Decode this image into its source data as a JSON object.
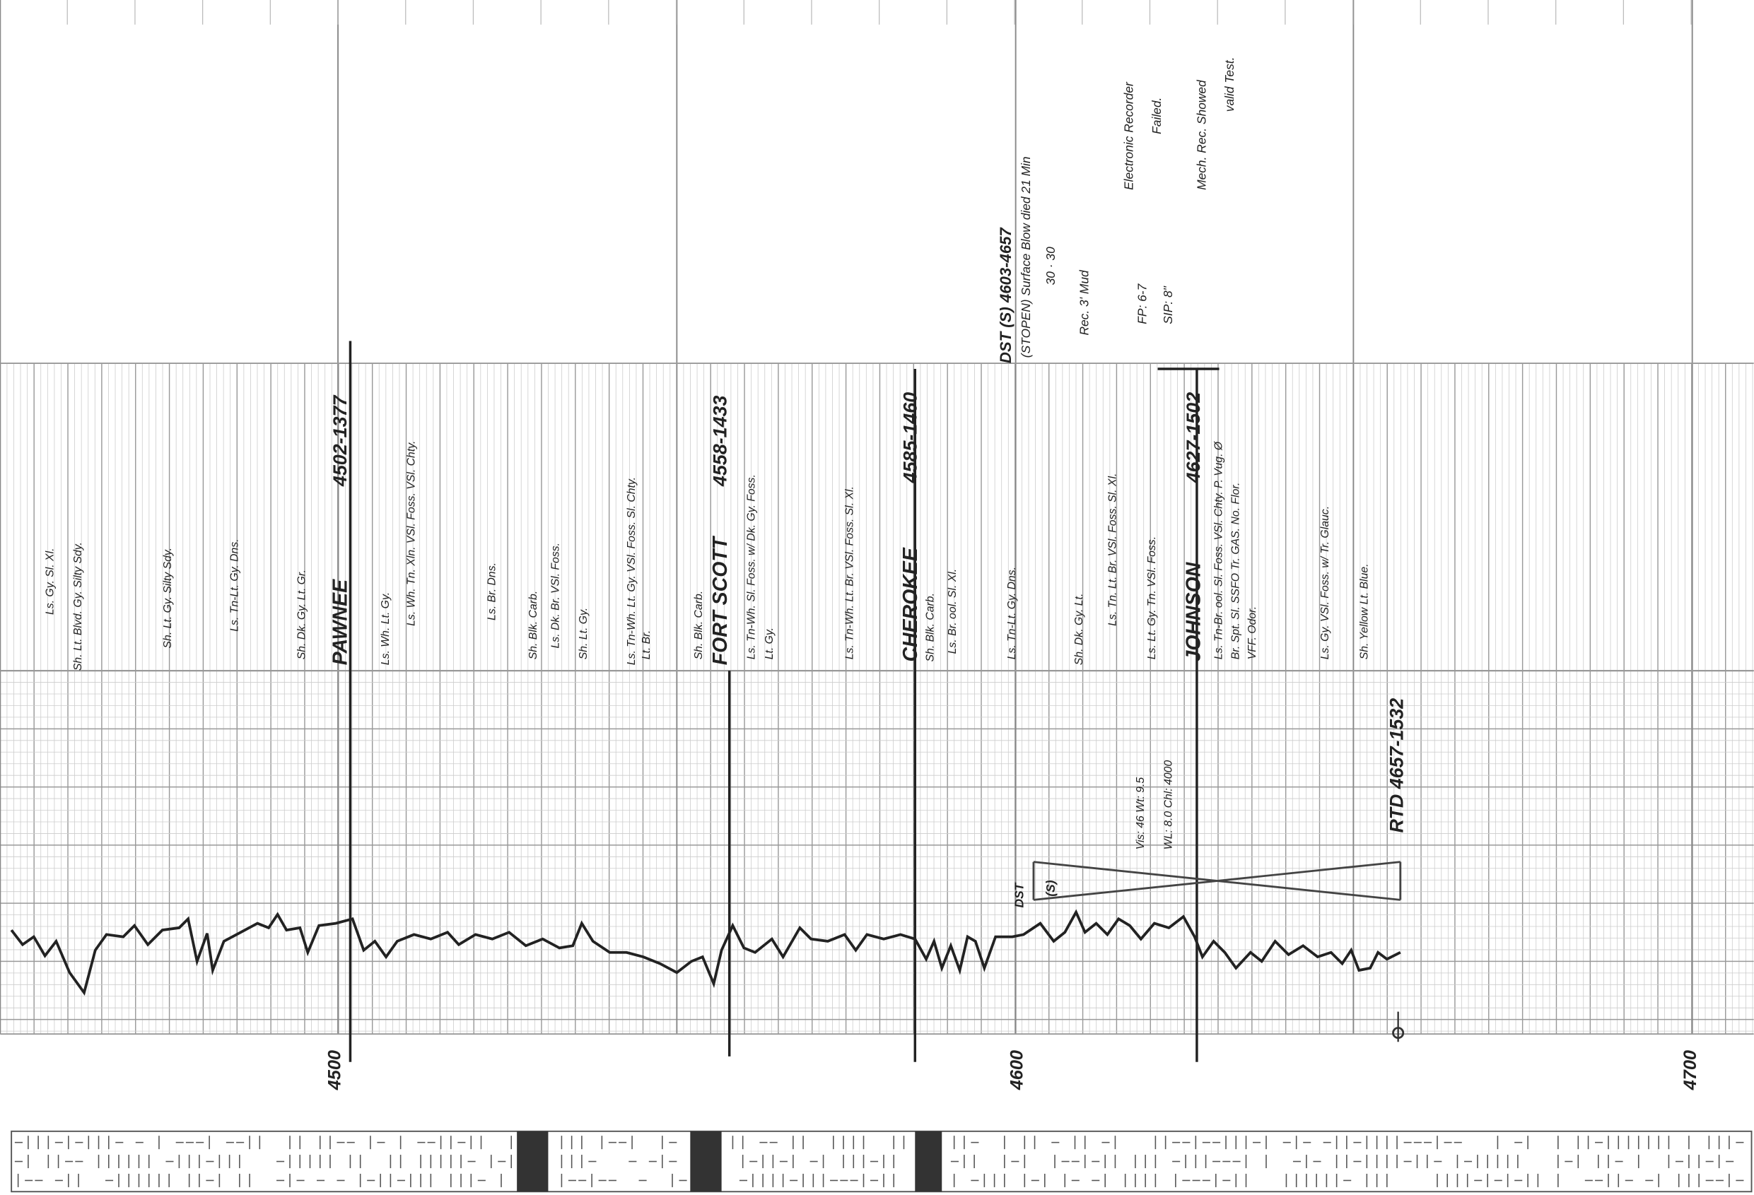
{
  "depth_labels": [
    "4500",
    "4600",
    "4700"
  ],
  "formation_tops": [
    {
      "name": "PAWNEE",
      "depth": "4502-1377"
    },
    {
      "name": "FORT SCOTT",
      "depth": "4558-1433"
    },
    {
      "name": "CHEROKEE",
      "depth": "4585-1460"
    },
    {
      "name": "JOHNSON",
      "depth": "4627-1502"
    }
  ],
  "rtd": "RTD 4657-1532",
  "lithology": [
    "Ls. Gy. Sl. Xl.",
    "Sh. Lt. Blvd. Gy. Silty Sdy.",
    "Sh. Lt. Gy. Silty Sdy.",
    "Ls. Tn-Lt. Gy. Dns.",
    "Sh. Dk. Gy. Lt. Gr.",
    "Ls. Wh. Lt. Gy.",
    "Ls. Wh. Tn. Xln. VSl. Foss. VSl. Chty.",
    "Ls. Br. Dns.",
    "Sh. Blk. Carb.",
    "Ls. Dk. Br. VSl. Foss.",
    "Sh. Lt. Gy.",
    "Ls. Tn-Wh. Lt. Gy. VSl. Foss. Sl. Chty.",
    "Lt. Br.",
    "Sh. Blk. Carb.",
    "Ls. Tn-Wh. Sl. Foss. w/ Dk. Gy. Foss.",
    "Lt. Gy.",
    "Ls. Tn-Wh. Lt. Br. VSl. Foss. Sl. Xl.",
    "Sh. Blk. Carb.",
    "Ls. Br. ool. Sl. Xl.",
    "Ls. Tn-Lt. Gy. Dns.",
    "Sh. Dk. Gy. Lt.",
    "Ls. Tn. Lt. Br. VSl. Foss. Sl. Xl.",
    "Ls. Lt. Gy. Tn. VSl. Foss.",
    "Ls. Tn-Br. ool. Sl. Foss. VSl. Chty. P. Vug. Ø",
    "Br. Spt. Sl. SSFO Tr. GAS. No. Flor.",
    "VFF. Odor.",
    "Ls. Gy. VSl. Foss. w/ Tr. Glauc.",
    "Sh. Yellow Lt. Blue."
  ],
  "dst": {
    "title": "DST (S) 4603-4657",
    "notes": [
      "(STOPEN) Surface Blow died 21 Min",
      "30 · 30",
      "Rec. 3' Mud",
      "FP: 6-7",
      "SIP: 8\"",
      "Electronic Recorder",
      "Failed.",
      "Mech. Rec. Showed",
      "valid Test."
    ],
    "symbol": [
      "DST",
      "(S)"
    ]
  },
  "mud": [
    "Vis: 46 Wt: 9.5",
    "WL: 8.0 Chl: 4000"
  ]
}
